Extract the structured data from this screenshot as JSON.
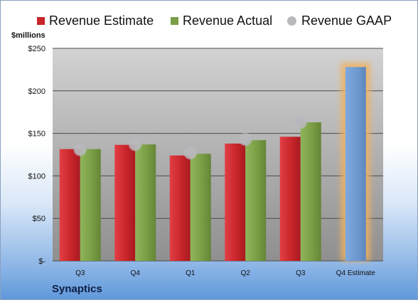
{
  "chart_data": {
    "type": "bar",
    "categories": [
      "Q3",
      "Q4",
      "Q1",
      "Q2",
      "Q3",
      "Q4 Estimate"
    ],
    "series": [
      {
        "name": "Revenue Estimate",
        "color": "#c7252a",
        "values": [
          131.5,
          136.5,
          124,
          138,
          146,
          null
        ]
      },
      {
        "name": "Revenue Actual",
        "color": "#7a9e45",
        "values": [
          131.5,
          137,
          126,
          142,
          163,
          null
        ]
      },
      {
        "name": "Revenue GAAP",
        "color": "#b8b8bd",
        "values": [
          131,
          137,
          127,
          143,
          163,
          null
        ]
      }
    ],
    "forecast": {
      "category": "Q4 Estimate",
      "value": 228,
      "color": "#6f9ad1",
      "glow_color": "#f2b15f"
    },
    "y_ticks": [
      "$-",
      "$50",
      "$100",
      "$150",
      "$200",
      "$250"
    ],
    "ylabel": "$millions",
    "ylim": [
      0,
      250
    ],
    "grid": true,
    "legend": "top",
    "footer_label": "Synaptics"
  }
}
